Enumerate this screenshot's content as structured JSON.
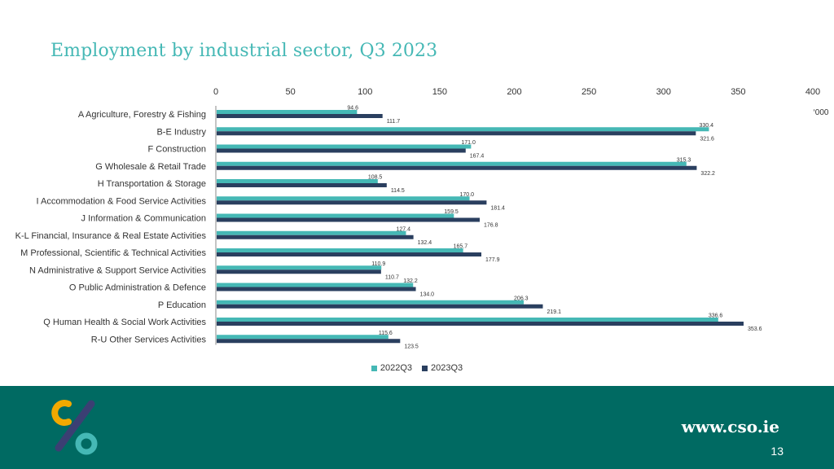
{
  "title": "Employment by industrial sector, Q3 2023",
  "footer": {
    "site": "www.cso.ie",
    "page_number": "13"
  },
  "colors": {
    "title": "#45b8b5",
    "series_2022": "#45b8b5",
    "series_2023": "#2a3f5f",
    "footer_bg": "#006a62"
  },
  "chart_data": {
    "type": "bar",
    "orientation": "horizontal",
    "title": "",
    "xlim": [
      0,
      400
    ],
    "x_ticks": [
      "0",
      "50",
      "100",
      "150",
      "200",
      "250",
      "300",
      "350",
      "400"
    ],
    "unit_label": "‘000",
    "legend_position": "bottom",
    "categories": [
      "A Agriculture, Forestry & Fishing",
      "B-E Industry",
      "F Construction",
      "G Wholesale & Retail Trade",
      "H Transportation & Storage",
      "I Accommodation & Food Service Activities",
      "J Information & Communication",
      "K-L Financial, Insurance & Real Estate Activities",
      "M Professional, Scientific & Technical Activities",
      "N Administrative & Support Service Activities",
      "O Public Administration & Defence",
      "P Education",
      "Q Human Health & Social Work Activities",
      "R-U Other Services Activities"
    ],
    "series": [
      {
        "name": "2022Q3",
        "values": [
          94.6,
          330.4,
          171.0,
          315.3,
          108.5,
          170.0,
          159.5,
          127.4,
          165.7,
          110.9,
          132.2,
          206.3,
          336.6,
          115.6
        ]
      },
      {
        "name": "2023Q3",
        "values": [
          111.7,
          321.6,
          167.4,
          322.2,
          114.5,
          181.4,
          176.8,
          132.4,
          177.9,
          110.7,
          134.0,
          219.1,
          353.6,
          123.5
        ]
      }
    ]
  }
}
